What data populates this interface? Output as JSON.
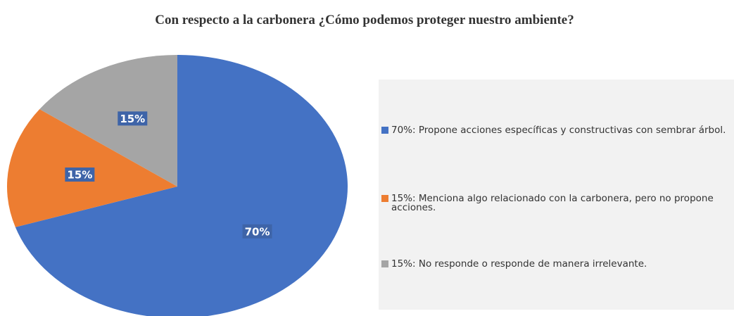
{
  "chart_data": {
    "type": "pie",
    "title": "Con respecto a la carbonera ¿Cómo podemos proteger nuestro ambiente?",
    "categories": [
      "70%: Propone acciones específicas y constructivas con sembrar árbol.",
      "15%: Menciona algo relacionado con la carbonera, pero no propone acciones.",
      "15%: No responde o responde de manera irrelevante."
    ],
    "values": [
      70,
      15,
      15
    ],
    "value_labels": [
      "70%",
      "15%",
      "15%"
    ],
    "colors": [
      "#4472c4",
      "#ed7d31",
      "#a5a5a5"
    ],
    "legend": "right"
  }
}
